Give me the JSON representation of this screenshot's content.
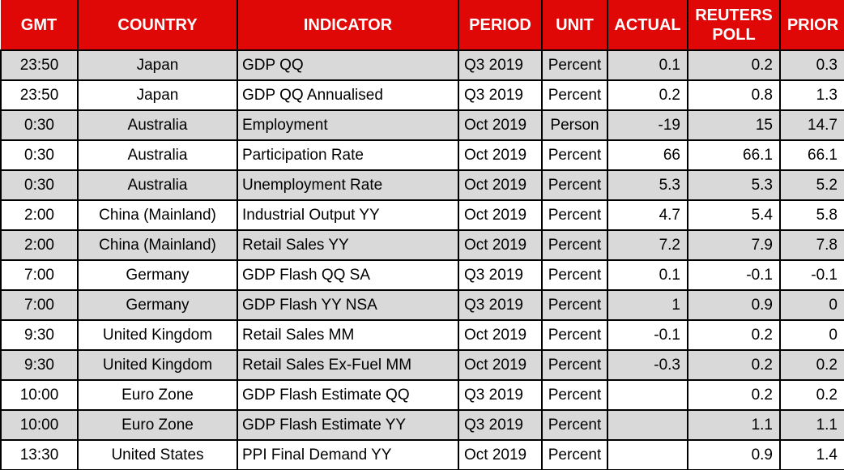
{
  "chart_data": {
    "type": "table",
    "columns": [
      "GMT",
      "COUNTRY",
      "INDICATOR",
      "PERIOD",
      "UNIT",
      "ACTUAL",
      "REUTERS POLL",
      "PRIOR"
    ],
    "rows": [
      [
        "23:50",
        "Japan",
        "GDP QQ",
        "Q3 2019",
        "Percent",
        "0.1",
        "0.2",
        "0.3"
      ],
      [
        "23:50",
        "Japan",
        "GDP QQ Annualised",
        "Q3 2019",
        "Percent",
        "0.2",
        "0.8",
        "1.3"
      ],
      [
        "0:30",
        "Australia",
        "Employment",
        "Oct 2019",
        "Person",
        "-19",
        "15",
        "14.7"
      ],
      [
        "0:30",
        "Australia",
        "Participation Rate",
        "Oct 2019",
        "Percent",
        "66",
        "66.1",
        "66.1"
      ],
      [
        "0:30",
        "Australia",
        "Unemployment Rate",
        "Oct 2019",
        "Percent",
        "5.3",
        "5.3",
        "5.2"
      ],
      [
        "2:00",
        "China (Mainland)",
        "Industrial Output YY",
        "Oct 2019",
        "Percent",
        "4.7",
        "5.4",
        "5.8"
      ],
      [
        "2:00",
        "China (Mainland)",
        "Retail Sales YY",
        "Oct 2019",
        "Percent",
        "7.2",
        "7.9",
        "7.8"
      ],
      [
        "7:00",
        "Germany",
        "GDP Flash QQ SA",
        "Q3 2019",
        "Percent",
        "0.1",
        "-0.1",
        "-0.1"
      ],
      [
        "7:00",
        "Germany",
        "GDP Flash YY NSA",
        "Q3 2019",
        "Percent",
        "1",
        "0.9",
        "0"
      ],
      [
        "9:30",
        "United Kingdom",
        "Retail Sales MM",
        "Oct 2019",
        "Percent",
        "-0.1",
        "0.2",
        "0"
      ],
      [
        "9:30",
        "United Kingdom",
        "Retail Sales Ex-Fuel MM",
        "Oct 2019",
        "Percent",
        "-0.3",
        "0.2",
        "0.2"
      ],
      [
        "10:00",
        "Euro Zone",
        "GDP Flash Estimate QQ",
        "Q3 2019",
        "Percent",
        "",
        "0.2",
        "0.2"
      ],
      [
        "10:00",
        "Euro Zone",
        "GDP Flash Estimate YY",
        "Q3 2019",
        "Percent",
        "",
        "1.1",
        "1.1"
      ],
      [
        "13:30",
        "United States",
        "PPI Final Demand YY",
        "Oct 2019",
        "Percent",
        "",
        "0.9",
        "1.4"
      ]
    ]
  },
  "colors": {
    "header_bg": "#e00707",
    "header_text": "#ffffff",
    "row_stripe_bg": "#d9d9d9",
    "row_bg": "#ffffff",
    "grid_border": "#000000",
    "text": "#000000"
  }
}
